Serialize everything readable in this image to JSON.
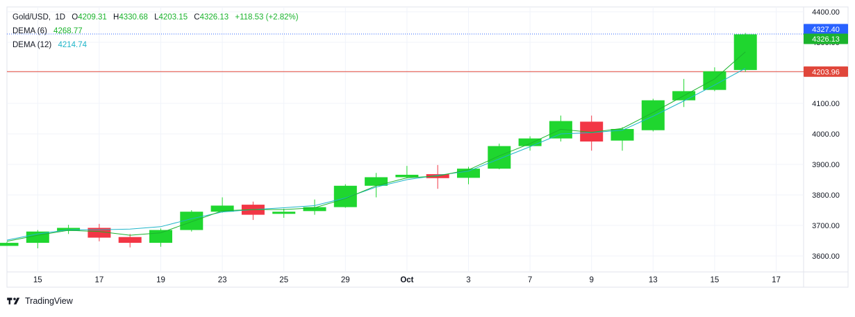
{
  "header": {
    "symbol": "Gold/USD",
    "interval": "1D",
    "o_label": "O",
    "o": "4209.31",
    "h_label": "H",
    "h": "4330.68",
    "l_label": "L",
    "l": "4203.15",
    "c_label": "C",
    "c": "4326.13",
    "change": "+118.53 (+2.82%)"
  },
  "indicators": [
    {
      "name": "DEMA (6)",
      "value": "4268.77",
      "color": "#1bb32d"
    },
    {
      "name": "DEMA (12)",
      "value": "4214.74",
      "color": "#1fb5c9"
    }
  ],
  "footer": {
    "brand": "TradingView",
    "logo_icon": "tradingview-logo-icon"
  },
  "colors": {
    "up": "#1fd62f",
    "down": "#f23645",
    "ema_fast": "#1bb32d",
    "ema_slow": "#1fb5c9",
    "ref_line": "#e0463a",
    "last_line": "#2962ff"
  },
  "chart_data": {
    "type": "candlestick",
    "y_axis": {
      "range": [
        3550,
        4400
      ],
      "ticks": [
        3600,
        3700,
        3800,
        3900,
        4000,
        4100,
        4200,
        4300,
        4400
      ],
      "tick_labels": [
        "3600.00",
        "3700.00",
        "3800.00",
        "3900.00",
        "4000.00",
        "4100.00",
        "4200.00",
        "4300.00",
        "4400.00"
      ]
    },
    "x_axis": {
      "labels": [
        {
          "text": "15",
          "index": 1
        },
        {
          "text": "17",
          "index": 3
        },
        {
          "text": "19",
          "index": 5
        },
        {
          "text": "23",
          "index": 7
        },
        {
          "text": "25",
          "index": 9
        },
        {
          "text": "29",
          "index": 11
        },
        {
          "text": "Oct",
          "index": 13
        },
        {
          "text": "3",
          "index": 15
        },
        {
          "text": "7",
          "index": 17
        },
        {
          "text": "9",
          "index": 19
        },
        {
          "text": "13",
          "index": 21
        },
        {
          "text": "15",
          "index": 23
        },
        {
          "text": "17",
          "index": 25
        }
      ]
    },
    "candles": [
      {
        "o": 3633,
        "h": 3646,
        "l": 3633,
        "c": 3643
      },
      {
        "o": 3643,
        "h": 3685,
        "l": 3625,
        "c": 3680
      },
      {
        "o": 3682,
        "h": 3702,
        "l": 3672,
        "c": 3692
      },
      {
        "o": 3692,
        "h": 3705,
        "l": 3648,
        "c": 3660
      },
      {
        "o": 3662,
        "h": 3672,
        "l": 3628,
        "c": 3643
      },
      {
        "o": 3643,
        "h": 3690,
        "l": 3630,
        "c": 3685
      },
      {
        "o": 3685,
        "h": 3750,
        "l": 3680,
        "c": 3745
      },
      {
        "o": 3745,
        "h": 3792,
        "l": 3742,
        "c": 3765
      },
      {
        "o": 3768,
        "h": 3778,
        "l": 3718,
        "c": 3735
      },
      {
        "o": 3738,
        "h": 3755,
        "l": 3725,
        "c": 3745
      },
      {
        "o": 3747,
        "h": 3785,
        "l": 3735,
        "c": 3760
      },
      {
        "o": 3760,
        "h": 3835,
        "l": 3758,
        "c": 3830
      },
      {
        "o": 3830,
        "h": 3872,
        "l": 3792,
        "c": 3858
      },
      {
        "o": 3858,
        "h": 3895,
        "l": 3855,
        "c": 3866
      },
      {
        "o": 3868,
        "h": 3898,
        "l": 3820,
        "c": 3855
      },
      {
        "o": 3856,
        "h": 3892,
        "l": 3835,
        "c": 3886
      },
      {
        "o": 3886,
        "h": 3968,
        "l": 3884,
        "c": 3960
      },
      {
        "o": 3960,
        "h": 3992,
        "l": 3945,
        "c": 3985
      },
      {
        "o": 3985,
        "h": 4060,
        "l": 3975,
        "c": 4042
      },
      {
        "o": 4040,
        "h": 4060,
        "l": 3945,
        "c": 3975
      },
      {
        "o": 3978,
        "h": 4022,
        "l": 3945,
        "c": 4016
      },
      {
        "o": 4012,
        "h": 4115,
        "l": 4008,
        "c": 4110
      },
      {
        "o": 4110,
        "h": 4180,
        "l": 4088,
        "c": 4140
      },
      {
        "o": 4144,
        "h": 4218,
        "l": 4140,
        "c": 4205
      },
      {
        "o": 4209.31,
        "h": 4330.68,
        "l": 4203.15,
        "c": 4326.13
      }
    ],
    "dema6": [
      3648,
      3668,
      3684,
      3680,
      3668,
      3676,
      3712,
      3748,
      3752,
      3752,
      3758,
      3788,
      3830,
      3856,
      3862,
      3882,
      3928,
      3968,
      4015,
      4005,
      4018,
      4070,
      4125,
      4180,
      4268.77
    ],
    "dema12": [
      3652,
      3672,
      3686,
      3686,
      3688,
      3696,
      3722,
      3744,
      3752,
      3758,
      3765,
      3790,
      3826,
      3850,
      3864,
      3878,
      3918,
      3958,
      4000,
      4004,
      4012,
      4058,
      4108,
      4160,
      4214.74
    ],
    "price_labels": [
      {
        "text": "4327.40",
        "value": 4327.4,
        "bg": "#2962ff",
        "role": "last"
      },
      {
        "text": "4326.13",
        "value": 4326.13,
        "bg": "#1bb32d",
        "role": "close"
      },
      {
        "text": "4203.96",
        "value": 4203.96,
        "bg": "#e0463a",
        "role": "ref"
      }
    ]
  }
}
